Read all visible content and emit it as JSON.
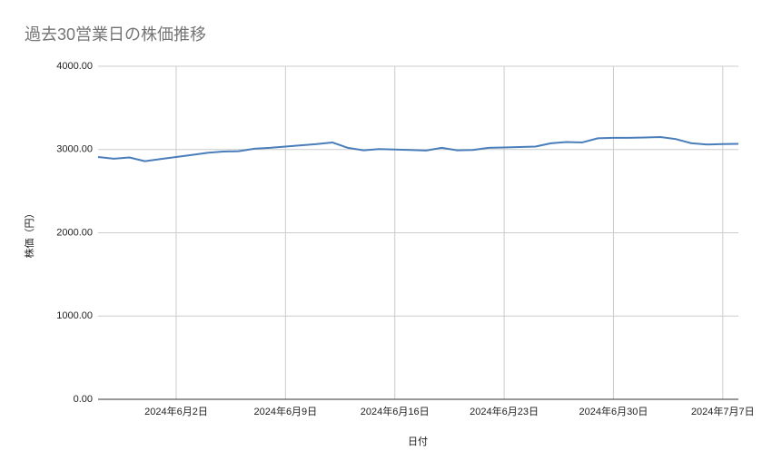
{
  "chart_data": {
    "type": "line",
    "title": "過去30営業日の株価推移",
    "x_label": "日付",
    "y_label": "株価（円）",
    "x": [
      "2024-05-28",
      "2024-05-29",
      "2024-05-30",
      "2024-05-31",
      "2024-06-01",
      "2024-06-02",
      "2024-06-03",
      "2024-06-04",
      "2024-06-05",
      "2024-06-06",
      "2024-06-07",
      "2024-06-08",
      "2024-06-09",
      "2024-06-10",
      "2024-06-11",
      "2024-06-12",
      "2024-06-13",
      "2024-06-14",
      "2024-06-15",
      "2024-06-16",
      "2024-06-17",
      "2024-06-18",
      "2024-06-19",
      "2024-06-20",
      "2024-06-21",
      "2024-06-22",
      "2024-06-23",
      "2024-06-24",
      "2024-06-25",
      "2024-06-26",
      "2024-06-27",
      "2024-06-28",
      "2024-06-29",
      "2024-06-30",
      "2024-07-01",
      "2024-07-02",
      "2024-07-03",
      "2024-07-04",
      "2024-07-05",
      "2024-07-06",
      "2024-07-07",
      "2024-07-08"
    ],
    "values": [
      2910,
      2890,
      2905,
      2860,
      2885,
      2910,
      2935,
      2960,
      2975,
      2980,
      3010,
      3020,
      3035,
      3050,
      3065,
      3085,
      3020,
      2990,
      3005,
      3000,
      2995,
      2988,
      3020,
      2990,
      2995,
      3020,
      3025,
      3030,
      3035,
      3075,
      3090,
      3085,
      3135,
      3140,
      3140,
      3145,
      3150,
      3125,
      3075,
      3060,
      3065,
      3068
    ],
    "color": "#4a7ebb",
    "xlim": [
      "2024-05-28",
      "2024-07-08"
    ],
    "xticks": [
      {
        "value": "2024-06-02",
        "label": "2024年6月2日"
      },
      {
        "value": "2024-06-09",
        "label": "2024年6月9日"
      },
      {
        "value": "2024-06-16",
        "label": "2024年6月16日"
      },
      {
        "value": "2024-06-23",
        "label": "2024年6月23日"
      },
      {
        "value": "2024-06-30",
        "label": "2024年6月30日"
      },
      {
        "value": "2024-07-07",
        "label": "2024年7月7日"
      }
    ],
    "ylim": [
      0,
      4000
    ],
    "yticks": [
      {
        "value": 0,
        "label": "0.00"
      },
      {
        "value": 1000,
        "label": "1000.00"
      },
      {
        "value": 2000,
        "label": "2000.00"
      },
      {
        "value": 3000,
        "label": "3000.00"
      },
      {
        "value": 4000,
        "label": "4000.00"
      }
    ],
    "grid": true
  }
}
